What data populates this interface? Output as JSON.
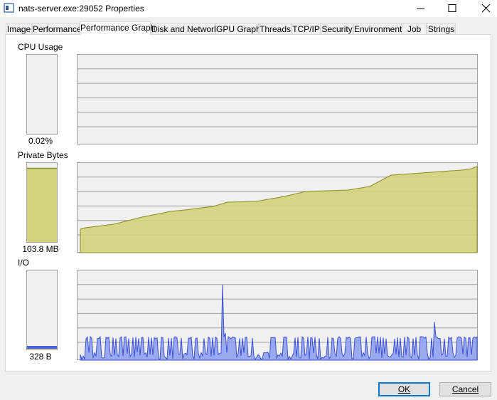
{
  "window": {
    "title": "nats-server.exe:29052 Properties"
  },
  "tabs": [
    "Image",
    "Performance",
    "Performance Graph",
    "Disk and Network",
    "GPU Graph",
    "Threads",
    "TCP/IP",
    "Security",
    "Environment",
    "Job",
    "Strings"
  ],
  "graphs": [
    {
      "label": "CPU Usage",
      "value": "0.02%"
    },
    {
      "label": "Private Bytes",
      "value": "103.8 MB"
    },
    {
      "label": "I/O",
      "value": "328 B"
    }
  ],
  "buttons": {
    "ok": "OK",
    "cancel": "Cancel"
  }
}
